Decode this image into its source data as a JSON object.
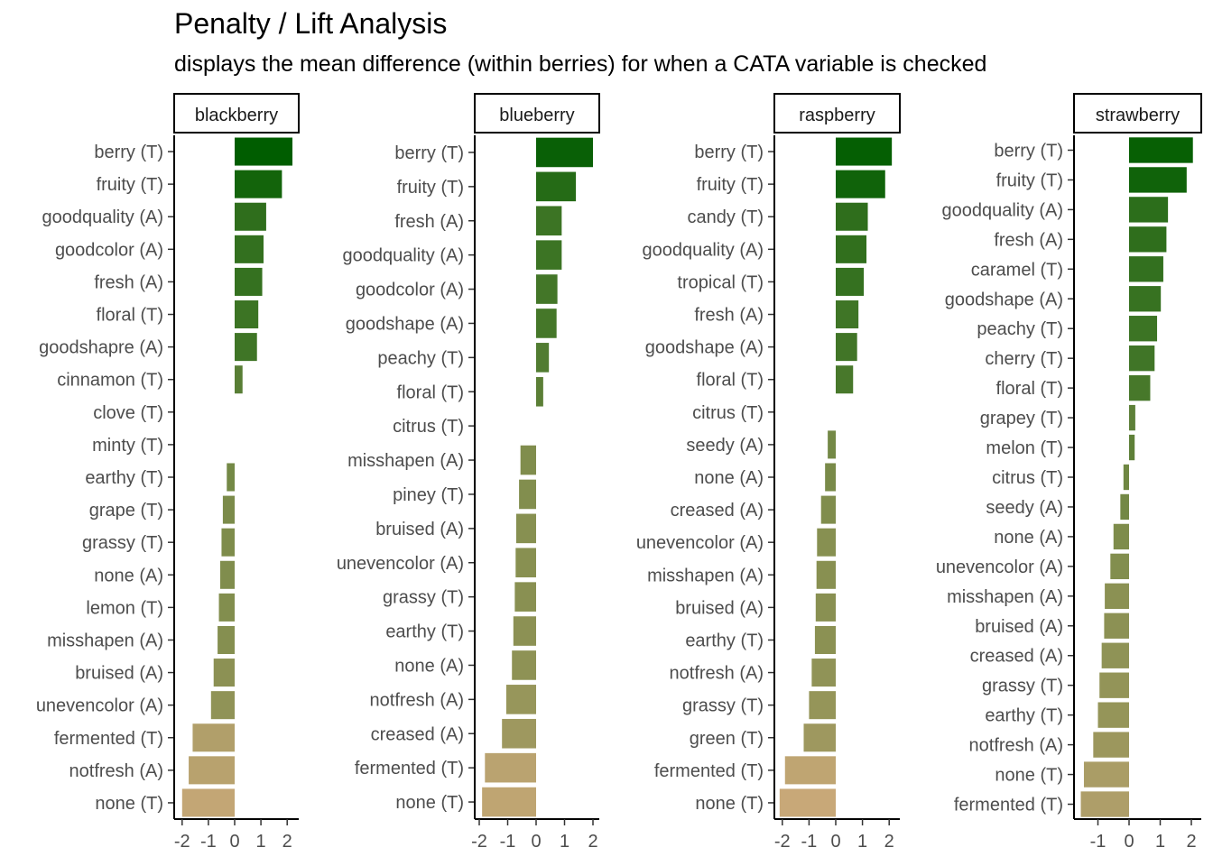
{
  "title": "Penalty / Lift Analysis",
  "subtitle": "displays the mean difference (within berries) for when a CATA variable is checked",
  "chart_data": [
    {
      "type": "bar",
      "panel": "blackberry",
      "orientation": "horizontal",
      "xlim": [
        -2.3,
        2.4
      ],
      "xticks": [
        -2,
        -1,
        0,
        1,
        2
      ],
      "xtick_labels": [
        "-2",
        "-1",
        "0",
        "1",
        "2"
      ],
      "categories": [
        "berry (T)",
        "fruity (T)",
        "goodquality (A)",
        "goodcolor (A)",
        "fresh (A)",
        "floral (T)",
        "goodshapre (A)",
        "cinnamon (T)",
        "clove (T)",
        "minty (T)",
        "earthy (T)",
        "grape (T)",
        "grassy (T)",
        "none (A)",
        "lemon (T)",
        "misshapen (A)",
        "bruised (A)",
        "unevencolor (A)",
        "fermented (T)",
        "notfresh (A)",
        "none (T)"
      ],
      "values": [
        2.2,
        1.8,
        1.2,
        1.1,
        1.05,
        0.9,
        0.85,
        0.3,
        0,
        0,
        -0.3,
        -0.45,
        -0.5,
        -0.55,
        -0.6,
        -0.65,
        -0.8,
        -0.9,
        -1.6,
        -1.75,
        -2.0
      ]
    },
    {
      "type": "bar",
      "panel": "blueberry",
      "orientation": "horizontal",
      "xlim": [
        -2.2,
        2.2
      ],
      "xticks": [
        -2,
        -1,
        0,
        1,
        2
      ],
      "xtick_labels": [
        "-2",
        "-1",
        "0",
        "1",
        "2"
      ],
      "categories": [
        "berry (T)",
        "fruity (T)",
        "fresh (A)",
        "goodquality (A)",
        "goodcolor (A)",
        "goodshape (A)",
        "peachy (T)",
        "floral (T)",
        "citrus (T)",
        "misshapen (A)",
        "piney (T)",
        "bruised (A)",
        "unevencolor (A)",
        "grassy (T)",
        "earthy (T)",
        "none (A)",
        "notfresh (A)",
        "creased (A)",
        "fermented (T)",
        "none (T)"
      ],
      "values": [
        2.0,
        1.4,
        0.9,
        0.9,
        0.75,
        0.72,
        0.45,
        0.25,
        0,
        -0.55,
        -0.6,
        -0.7,
        -0.72,
        -0.75,
        -0.8,
        -0.85,
        -1.05,
        -1.2,
        -1.8,
        -1.9
      ]
    },
    {
      "type": "bar",
      "panel": "raspberry",
      "orientation": "horizontal",
      "xlim": [
        -2.3,
        2.35
      ],
      "xticks": [
        -2,
        -1,
        0,
        1,
        2
      ],
      "xtick_labels": [
        "-2",
        "-1",
        "0",
        "1",
        "2"
      ],
      "categories": [
        "berry (T)",
        "fruity (T)",
        "candy (T)",
        "goodquality (A)",
        "tropical (T)",
        "fresh (A)",
        "goodshape (A)",
        "floral (T)",
        "citrus (T)",
        "seedy (A)",
        "none (A)",
        "creased (A)",
        "unevencolor (A)",
        "misshapen (A)",
        "bruised (A)",
        "earthy (T)",
        "notfresh (A)",
        "grassy (T)",
        "green (T)",
        "fermented (T)",
        "none (T)"
      ],
      "values": [
        2.1,
        1.85,
        1.2,
        1.15,
        1.05,
        0.85,
        0.8,
        0.65,
        0,
        -0.3,
        -0.4,
        -0.55,
        -0.7,
        -0.72,
        -0.75,
        -0.78,
        -0.9,
        -1.0,
        -1.2,
        -1.9,
        -2.1
      ]
    },
    {
      "type": "bar",
      "panel": "strawberry",
      "orientation": "horizontal",
      "xlim": [
        -1.8,
        2.2
      ],
      "xticks": [
        -1,
        0,
        1,
        2
      ],
      "xtick_labels": [
        "-1",
        "0",
        "1",
        "2"
      ],
      "categories": [
        "berry (T)",
        "fruity (T)",
        "goodquality (A)",
        "fresh (A)",
        "caramel (T)",
        "goodshape (A)",
        "peachy (T)",
        "cherry (T)",
        "floral (T)",
        "grapey (T)",
        "melon (T)",
        "citrus (T)",
        "seedy (A)",
        "none (A)",
        "unevencolor (A)",
        "misshapen (A)",
        "bruised (A)",
        "creased (A)",
        "grassy (T)",
        "earthy (T)",
        "notfresh (A)",
        "none (T)",
        "fermented (T)"
      ],
      "values": [
        2.05,
        1.85,
        1.25,
        1.2,
        1.1,
        1.02,
        0.9,
        0.82,
        0.68,
        0.2,
        0.18,
        -0.18,
        -0.28,
        -0.5,
        -0.6,
        -0.78,
        -0.8,
        -0.88,
        -0.95,
        -1.0,
        -1.15,
        -1.45,
        -1.55
      ]
    }
  ]
}
